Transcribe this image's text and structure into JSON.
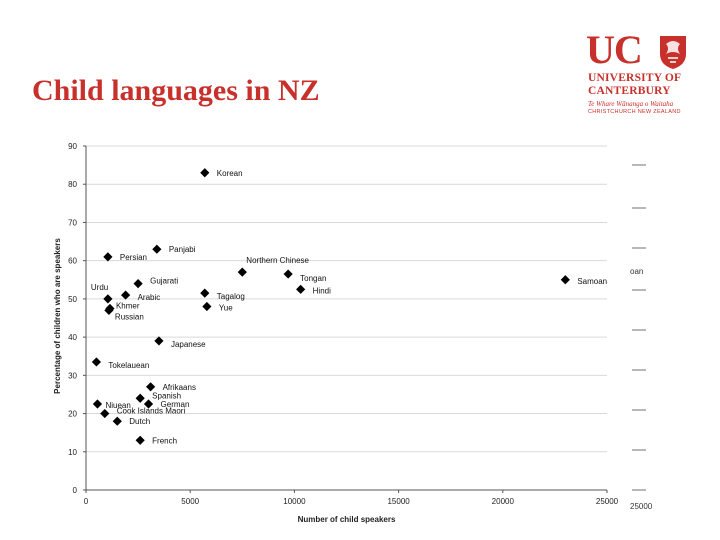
{
  "slide": {
    "title": "Child languages in NZ"
  },
  "logo": {
    "mark": "UC",
    "line1": "UNIVERSITY OF",
    "line2": "CANTERBURY",
    "line3": "Te Whare Wānanga o Waitaha",
    "line4": "CHRISTCHURCH NEW ZEALAND",
    "crest_icon": "crest-icon"
  },
  "colors": {
    "title": "#c8302b",
    "marker": "#000000",
    "axis": "#555555",
    "grid": "#d9d9d9"
  },
  "chart_data": {
    "type": "scatter",
    "xlabel": "Number of child speakers",
    "ylabel": "Percentage of children who are speakers",
    "xlim": [
      0,
      25000
    ],
    "ylim": [
      0,
      90
    ],
    "xticks": [
      0,
      5000,
      10000,
      15000,
      20000,
      25000
    ],
    "yticks": [
      0,
      10,
      20,
      30,
      40,
      50,
      60,
      70,
      80,
      90
    ],
    "grid": true,
    "points": [
      {
        "label": "Korean",
        "x": 5700,
        "y": 83
      },
      {
        "label": "Panjabi",
        "x": 3400,
        "y": 63
      },
      {
        "label": "Persian",
        "x": 1050,
        "y": 61
      },
      {
        "label": "Northern Chinese",
        "x": 7500,
        "y": 57
      },
      {
        "label": "Tongan",
        "x": 9700,
        "y": 56.5
      },
      {
        "label": "Samoan",
        "x": 23000,
        "y": 55
      },
      {
        "label": "Gujarati",
        "x": 2500,
        "y": 54
      },
      {
        "label": "Hindi",
        "x": 10300,
        "y": 52.5
      },
      {
        "label": "Urdu",
        "x": 1050,
        "y": 50
      },
      {
        "label": "Arabic",
        "x": 1900,
        "y": 51
      },
      {
        "label": "Tagalog",
        "x": 5700,
        "y": 51.5
      },
      {
        "label": "Khmer",
        "x": 1150,
        "y": 47.5
      },
      {
        "label": "Russian",
        "x": 1100,
        "y": 47
      },
      {
        "label": "Yue",
        "x": 5800,
        "y": 48
      },
      {
        "label": "Japanese",
        "x": 3500,
        "y": 39
      },
      {
        "label": "Tokelauean",
        "x": 500,
        "y": 33.5
      },
      {
        "label": "Afrikaans",
        "x": 3100,
        "y": 27
      },
      {
        "label": "Spanish",
        "x": 2600,
        "y": 24
      },
      {
        "label": "German",
        "x": 3000,
        "y": 22.5
      },
      {
        "label": "Niuean",
        "x": 550,
        "y": 22.5
      },
      {
        "label": "Cook Islands Maori",
        "x": 900,
        "y": 20
      },
      {
        "label": "Dutch",
        "x": 1500,
        "y": 18
      },
      {
        "label": "French",
        "x": 2600,
        "y": 13
      }
    ],
    "background_chart_fragments": [
      "oan",
      "25000"
    ]
  }
}
